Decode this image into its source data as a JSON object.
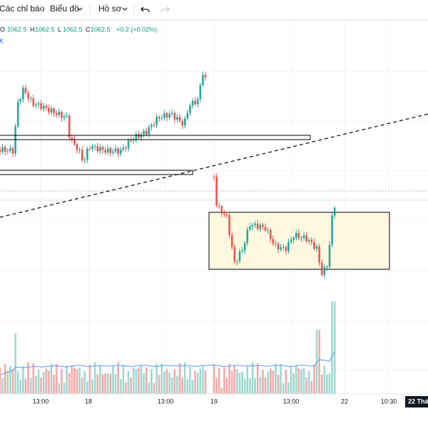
{
  "toolbar": {
    "items": [
      "Các chỉ báo",
      "Biểu đồ",
      "Hồ sơ"
    ]
  },
  "legend": {
    "ohlc": [
      {
        "label": "O",
        "value": "1062.5"
      },
      {
        "label": "H",
        "value": "1062.5"
      },
      {
        "label": "L",
        "value": "1062.5"
      },
      {
        "label": "C",
        "value": "1062.5"
      }
    ],
    "change": "+0.2 (+0.02%)",
    "secondary": "K"
  },
  "x_axis": {
    "labels": [
      "13:00",
      "18",
      "13:00",
      "19",
      "13:00",
      "22",
      "10:30"
    ],
    "current": "22 Thá"
  }
}
